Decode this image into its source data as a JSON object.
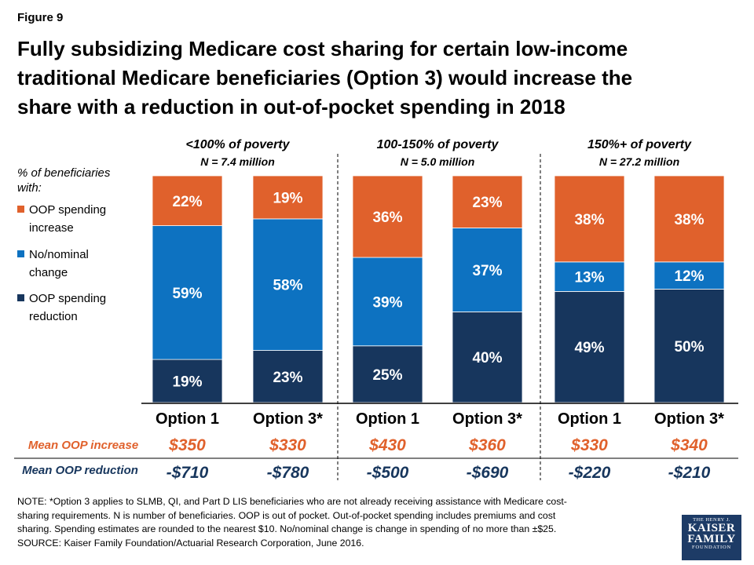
{
  "figure_label": "Figure 9",
  "title_lines": [
    "Fully subsidizing Medicare cost sharing for certain low-income",
    "traditional Medicare beneficiaries (Option 3) would increase the",
    "share with a reduction in out-of-pocket spending in 2018"
  ],
  "legend": {
    "heading_lines": [
      "% of beneficiaries",
      "with:"
    ],
    "items": [
      {
        "lines": [
          "OOP spending",
          "increase"
        ],
        "color": "#e0612c"
      },
      {
        "lines": [
          "No/nominal",
          "change"
        ],
        "color": "#0d72c1"
      },
      {
        "lines": [
          "OOP spending",
          "reduction"
        ],
        "color": "#17365d"
      }
    ]
  },
  "groups": [
    {
      "title": "<100% of poverty",
      "n": "N = 7.4 million"
    },
    {
      "title": "100-150% of poverty",
      "n": "N = 5.0 million"
    },
    {
      "title": "150%+ of poverty",
      "n": "N = 27.2 million"
    }
  ],
  "row_labels": {
    "increase": "Mean OOP increase",
    "reduction": "Mean OOP reduction"
  },
  "colors": {
    "increase": "#e0612c",
    "nochange": "#0d72c1",
    "reduction": "#17365d",
    "increase_text": "#e0612c",
    "reduction_text": "#17365d"
  },
  "chart_data": {
    "type": "bar",
    "stacked": true,
    "categories": [
      "Option 1",
      "Option 3*",
      "Option 1",
      "Option 3*",
      "Option 1",
      "Option 3*"
    ],
    "series": [
      {
        "name": "OOP spending reduction",
        "values": [
          19,
          23,
          25,
          40,
          49,
          50
        ],
        "labels": [
          "19%",
          "23%",
          "25%",
          "40%",
          "49%",
          "50%"
        ]
      },
      {
        "name": "No/nominal change",
        "values": [
          59,
          58,
          39,
          37,
          13,
          12
        ],
        "labels": [
          "59%",
          "58%",
          "39%",
          "37%",
          "13%",
          "12%"
        ]
      },
      {
        "name": "OOP spending increase",
        "values": [
          22,
          19,
          36,
          23,
          38,
          38
        ],
        "labels": [
          "22%",
          "19%",
          "36%",
          "23%",
          "38%",
          "38%"
        ]
      }
    ],
    "ylim": [
      0,
      100
    ],
    "mean_oop_increase": [
      "$350",
      "$330",
      "$430",
      "$360",
      "$330",
      "$340"
    ],
    "mean_oop_reduction": [
      "-$710",
      "-$780",
      "-$500",
      "-$690",
      "-$220",
      "-$210"
    ]
  },
  "note_lines": [
    "NOTE: *Option 3 applies to SLMB, QI, and Part D LIS beneficiaries who are not already receiving assistance with Medicare cost-",
    "sharing requirements. N is number of beneficiaries. OOP is out of pocket. Out-of-pocket spending includes premiums and cost",
    "sharing. Spending estimates are rounded to the nearest $10. No/nominal change is change in spending of no more than ±$25.",
    "SOURCE: Kaiser Family Foundation/Actuarial Research Corporation, June 2016."
  ],
  "logo": {
    "top": "THE HENRY J.",
    "line1": "KAISER",
    "line2": "FAMILY",
    "bottom": "FOUNDATION"
  }
}
